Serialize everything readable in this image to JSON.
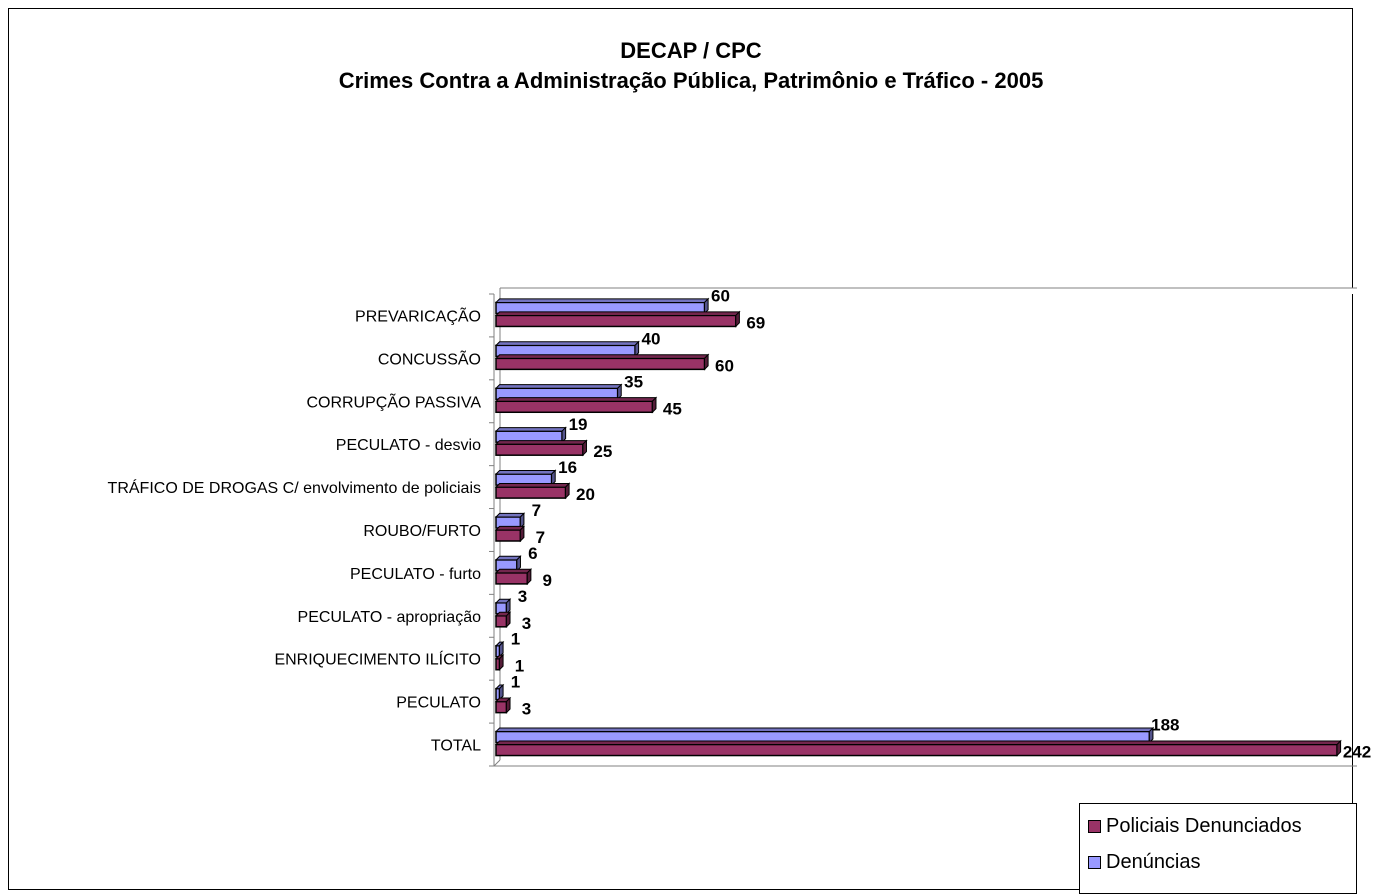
{
  "chart_data": {
    "type": "bar",
    "orientation": "horizontal",
    "title": "DECAP / CPC",
    "subtitle": "Crimes Contra a Administração Pública, Patrimônio e Tráfico - 2005",
    "categories": [
      "PREVARICAÇÃO",
      "CONCUSSÃO",
      "CORRUPÇÃO PASSIVA",
      "PECULATO - desvio",
      "TRÁFICO DE DROGAS C/ envolvimento de policiais",
      "ROUBO/FURTO",
      "PECULATO - furto",
      "PECULATO - apropriação",
      "ENRIQUECIMENTO ILÍCITO",
      "PECULATO",
      "TOTAL"
    ],
    "series": [
      {
        "name": "Denúncias",
        "color": "#9999ff",
        "values": [
          60,
          40,
          35,
          19,
          16,
          7,
          6,
          3,
          1,
          1,
          188
        ]
      },
      {
        "name": "Policiais Denunciados",
        "color": "#993366",
        "values": [
          69,
          60,
          45,
          25,
          20,
          7,
          9,
          3,
          1,
          3,
          242
        ]
      }
    ],
    "xlim": [
      0,
      242
    ],
    "legend_position": "bottom-right",
    "grid": false,
    "bar_style": "3d"
  }
}
